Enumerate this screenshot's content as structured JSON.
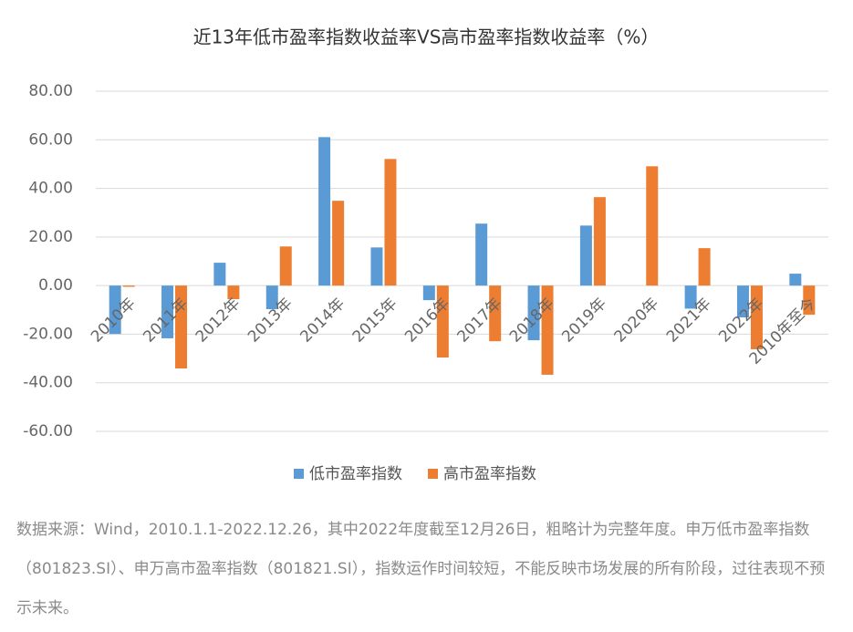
{
  "chart_data": {
    "type": "bar",
    "title": "近13年低市盈率指数收益率VS高市盈率指数收益率（%）",
    "categories": [
      "2010年",
      "2011年",
      "2012年",
      "2013年",
      "2014年",
      "2015年",
      "2016年",
      "2017年",
      "2018年",
      "2019年",
      "2020年",
      "2021年",
      "2022年",
      "2010年至今"
    ],
    "series": [
      {
        "name": "低市盈率指数",
        "color": "#5b9bd5",
        "values": [
          -19.9,
          -21.7,
          9.4,
          -9.7,
          61.1,
          15.7,
          -6.0,
          25.5,
          -22.5,
          24.7,
          0,
          -9.5,
          -13.1,
          4.9
        ]
      },
      {
        "name": "高市盈率指数",
        "color": "#ed7d31",
        "values": [
          -0.5,
          -34.1,
          -5.6,
          16.1,
          34.9,
          52.1,
          -29.6,
          -22.9,
          -36.7,
          36.4,
          49.1,
          15.4,
          -26.2,
          -12.0
        ]
      }
    ],
    "ylim": [
      -60,
      80
    ],
    "yticks": [
      {
        "value": -60,
        "label": "-60.00"
      },
      {
        "value": -40,
        "label": "-40.00"
      },
      {
        "value": -20,
        "label": "-20.00"
      },
      {
        "value": 0,
        "label": "0.00"
      },
      {
        "value": 20,
        "label": "20.00"
      },
      {
        "value": 40,
        "label": "40.00"
      },
      {
        "value": 60,
        "label": "60.00"
      },
      {
        "value": 80,
        "label": "80.00"
      }
    ],
    "grid": true,
    "legend": "bottom"
  },
  "note": "数据来源：Wind，2010.1.1-2022.12.26，其中2022年度截至12月26日，粗略计为完整年度。申万低市盈率指数（801823.SI）、申万高市盈率指数（801821.SI），指数运作时间较短，不能反映市场发展的所有阶段，过往表现不预示未来。"
}
